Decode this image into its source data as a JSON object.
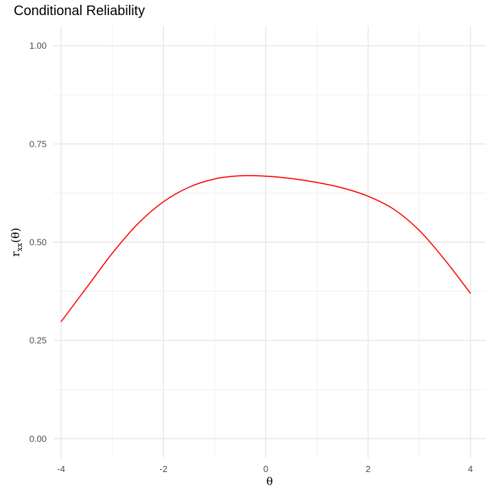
{
  "chart_data": {
    "type": "line",
    "title": "Conditional Reliability",
    "xlabel": "θ",
    "ylabel": {
      "main": "r",
      "subscript": "xx",
      "suffix": "(θ)"
    },
    "xlim": [
      -4.15,
      4.3
    ],
    "ylim": [
      -0.05,
      1.05
    ],
    "x_ticks": [
      -4,
      -2,
      0,
      2,
      4
    ],
    "x_tick_labels": [
      "-4",
      "-2",
      "0",
      "2",
      "4"
    ],
    "y_ticks": [
      0,
      0.25,
      0.5,
      0.75,
      1.0
    ],
    "y_tick_labels": [
      "0.00",
      "0.25",
      "0.50",
      "0.75",
      "1.00"
    ],
    "grid": true,
    "series": [
      {
        "color": "#ff0000",
        "x": [
          -4,
          -3.5,
          -3,
          -2.5,
          -2,
          -1.5,
          -1,
          -0.5,
          0,
          0.5,
          1,
          1.5,
          2,
          2.5,
          3,
          3.5,
          4
        ],
        "y": [
          0.298,
          0.385,
          0.472,
          0.547,
          0.603,
          0.64,
          0.661,
          0.669,
          0.668,
          0.662,
          0.652,
          0.638,
          0.617,
          0.584,
          0.53,
          0.455,
          0.37
        ]
      }
    ]
  }
}
